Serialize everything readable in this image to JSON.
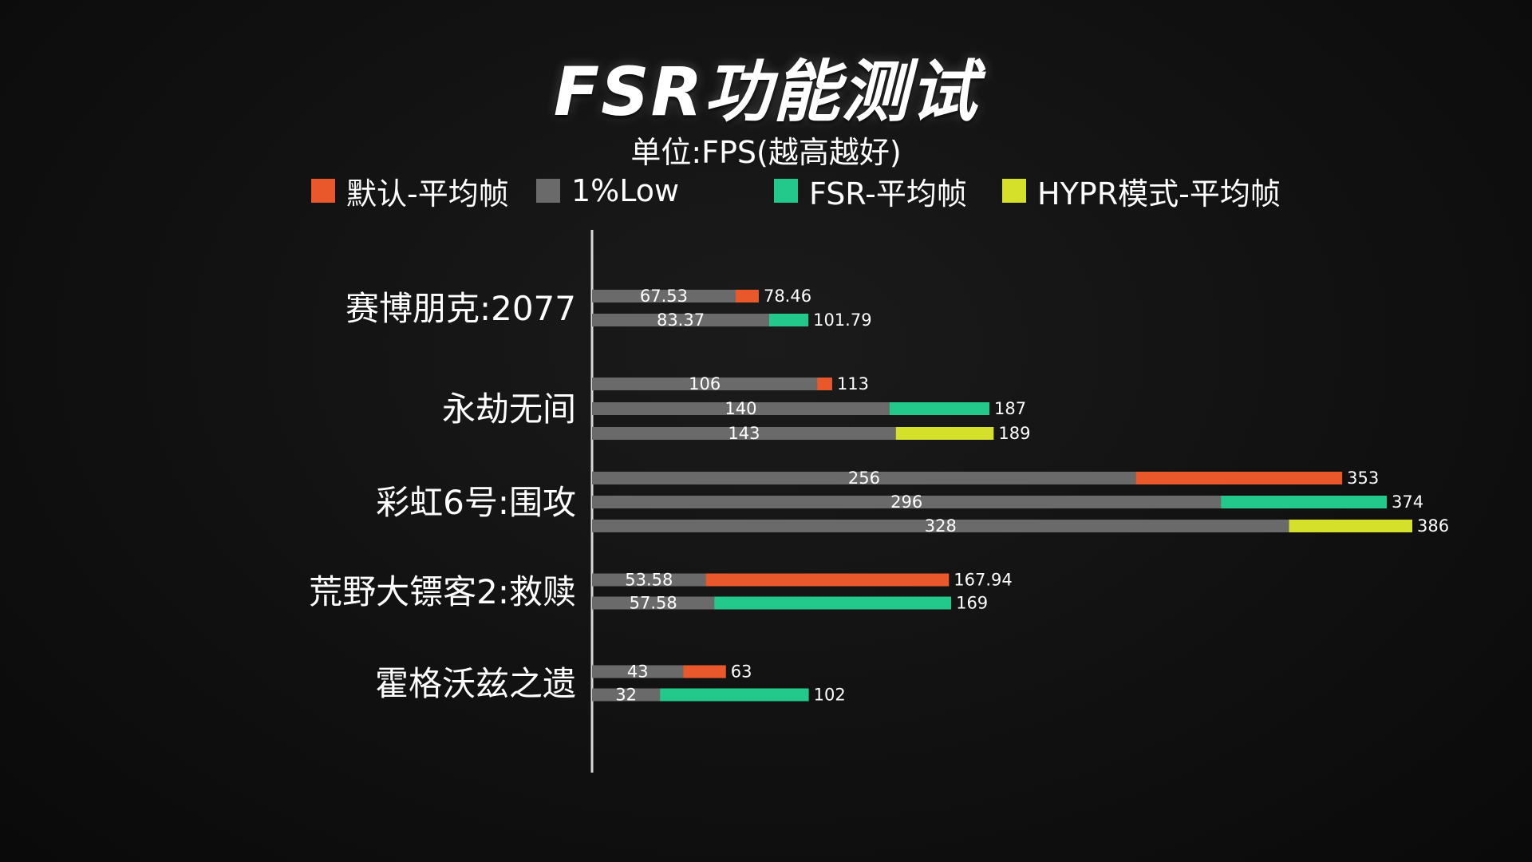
{
  "colors": {
    "default_avg": "#e8582a",
    "low1": "#6a6a6a",
    "fsr_avg": "#23c98a",
    "hypr_avg": "#d4e02a",
    "axis": "#d9d9d9",
    "text": "#ffffff"
  },
  "chart_data": {
    "type": "bar",
    "orientation": "horizontal",
    "title": "FSR功能测试",
    "subtitle": "单位:FPS(越高越好)",
    "legend": [
      {
        "key": "default",
        "label": "默认-平均帧",
        "color": "#e8582a"
      },
      {
        "key": "low",
        "label": "1%Low",
        "color": "#6a6a6a"
      },
      {
        "key": "fsr",
        "label": "FSR-平均帧",
        "color": "#23c98a"
      },
      {
        "key": "hypr",
        "label": "HYPR模式-平均帧",
        "color": "#d4e02a"
      }
    ],
    "legend_position": "top",
    "grid": false,
    "xlim": [
      0,
      386
    ],
    "categories": [
      {
        "name": "赛博朋克:2077",
        "bars": [
          {
            "series": "default",
            "low": "67.53",
            "avg": "78.46"
          },
          {
            "series": "fsr",
            "low": "83.37",
            "avg": "101.79"
          }
        ]
      },
      {
        "name": "永劫无间",
        "bars": [
          {
            "series": "default",
            "low": "106",
            "avg": "113"
          },
          {
            "series": "fsr",
            "low": "140",
            "avg": "187"
          },
          {
            "series": "hypr",
            "low": "143",
            "avg": "189"
          }
        ]
      },
      {
        "name": "彩虹6号:围攻",
        "bars": [
          {
            "series": "default",
            "low": "256",
            "avg": "353"
          },
          {
            "series": "fsr",
            "low": "296",
            "avg": "374"
          },
          {
            "series": "hypr",
            "low": "328",
            "avg": "386"
          }
        ]
      },
      {
        "name": "荒野大镖客2:救赎",
        "bars": [
          {
            "series": "default",
            "low": "53.58",
            "avg": "167.94"
          },
          {
            "series": "fsr",
            "low": "57.58",
            "avg": "169"
          }
        ]
      },
      {
        "name": "霍格沃兹之遗",
        "bars": [
          {
            "series": "default",
            "low": "43",
            "avg": "63"
          },
          {
            "series": "fsr",
            "low": "32",
            "avg": "102"
          }
        ]
      }
    ]
  }
}
